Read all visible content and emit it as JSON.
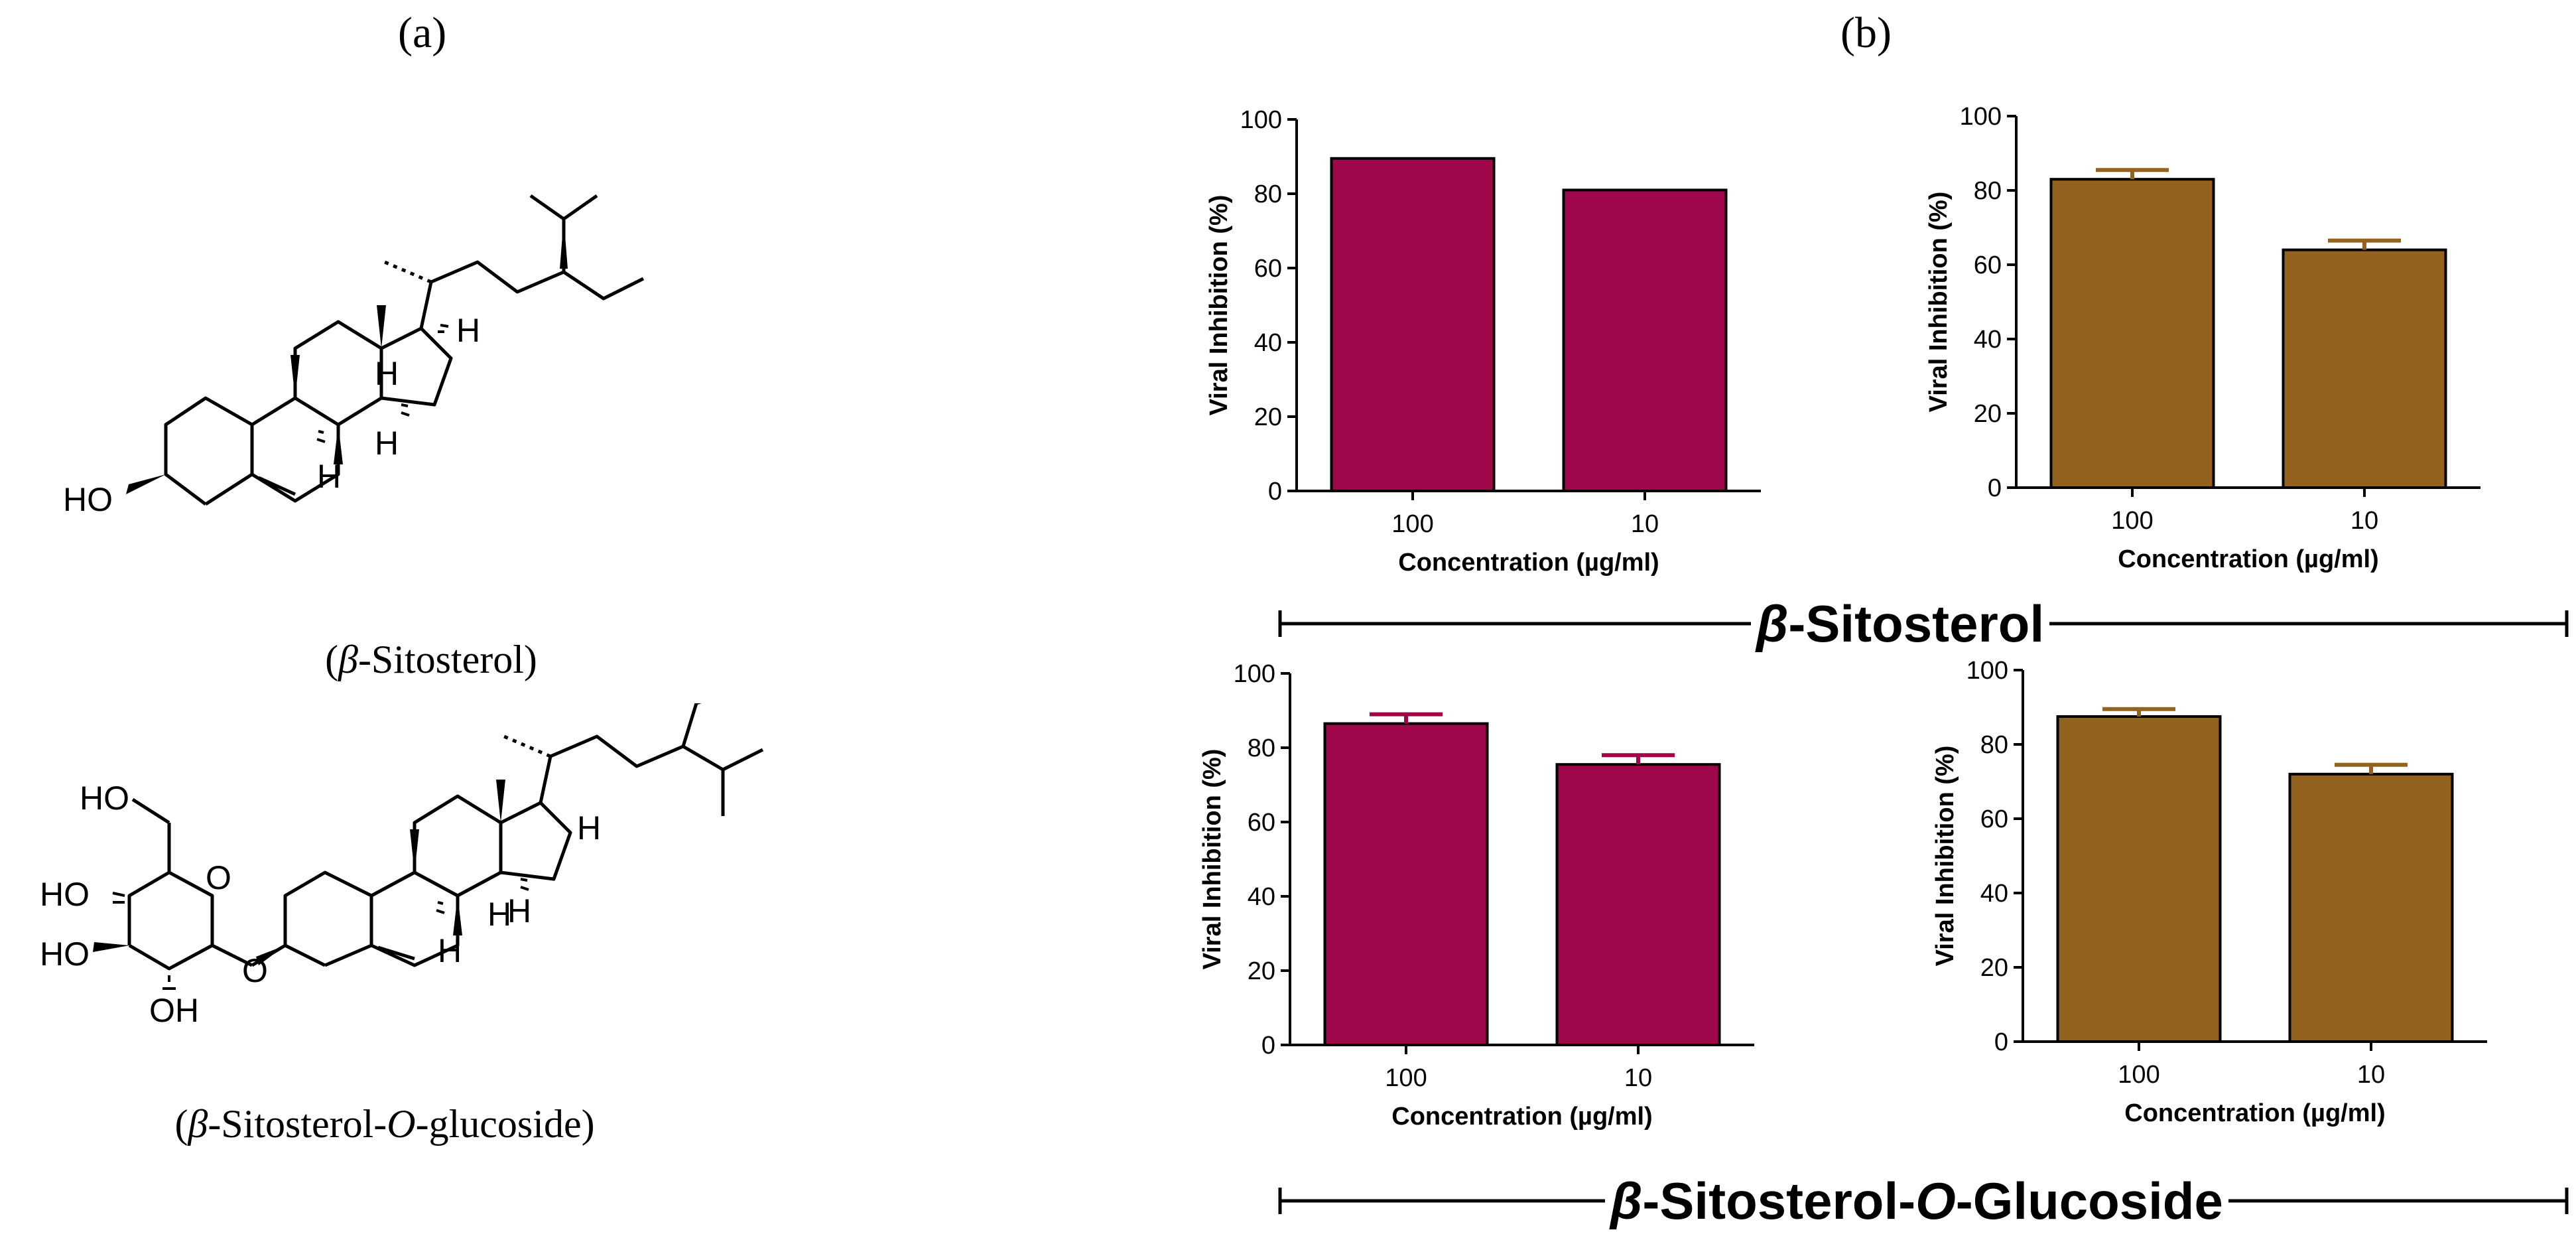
{
  "panels": {
    "a": "(a)",
    "b": "(b)"
  },
  "structures": {
    "s1": {
      "caption_pre": "(",
      "caption_greek": "β",
      "caption_post": "-Sitosterol)",
      "labels": {
        "ho": "HO",
        "h1": "H",
        "h2": "H",
        "h3": "H",
        "h4": "H"
      }
    },
    "s2": {
      "caption_pre": "(",
      "caption_greek": "β",
      "caption_mid": "-Sitosterol-",
      "caption_o": "O",
      "caption_post": "-glucoside)",
      "labels": {
        "ho1": "HO",
        "ho2": "HO",
        "ho3": "HO",
        "oh": "OH",
        "o_ring": "O",
        "o_link": "O",
        "h1": "H",
        "h2": "H",
        "h3": "H",
        "h4": "H"
      }
    }
  },
  "groups": {
    "g1": {
      "greek": "β",
      "name": "-Sitosterol"
    },
    "g2": {
      "greek": "β",
      "name1": "-Sitosterol-",
      "o": "O",
      "name2": "-Glucoside"
    }
  },
  "colors": {
    "crimson": "#a0074a",
    "brown": "#94621f",
    "axis": "#000000"
  },
  "chart_data": [
    {
      "type": "bar",
      "categories": [
        "100",
        "10"
      ],
      "values": [
        89.5,
        81
      ],
      "errors": [
        0,
        0
      ],
      "ylim": [
        0,
        100
      ],
      "yticks": [
        0,
        20,
        40,
        60,
        80,
        100
      ],
      "xlabel": "Concentration (µg/ml)",
      "ylabel": "Viral Inhibition (%)",
      "color": "crimson"
    },
    {
      "type": "bar",
      "categories": [
        "100",
        "10"
      ],
      "values": [
        83,
        64
      ],
      "errors": [
        2.5,
        2.5
      ],
      "ylim": [
        0,
        100
      ],
      "yticks": [
        0,
        20,
        40,
        60,
        80,
        100
      ],
      "xlabel": "Concentration (µg/ml)",
      "ylabel": "Viral Inhibition (%)",
      "color": "brown"
    },
    {
      "type": "bar",
      "categories": [
        "100",
        "10"
      ],
      "values": [
        86.5,
        75.5
      ],
      "errors": [
        2.5,
        2.5
      ],
      "ylim": [
        0,
        100
      ],
      "yticks": [
        0,
        20,
        40,
        60,
        80,
        100
      ],
      "xlabel": "Concentration (µg/ml)",
      "ylabel": "Viral Inhibition (%)",
      "color": "crimson"
    },
    {
      "type": "bar",
      "categories": [
        "100",
        "10"
      ],
      "values": [
        87.5,
        72
      ],
      "errors": [
        2,
        2.5
      ],
      "ylim": [
        0,
        100
      ],
      "yticks": [
        0,
        20,
        40,
        60,
        80,
        100
      ],
      "xlabel": "Concentration (µg/ml)",
      "ylabel": "Viral Inhibition (%)",
      "color": "brown"
    }
  ]
}
